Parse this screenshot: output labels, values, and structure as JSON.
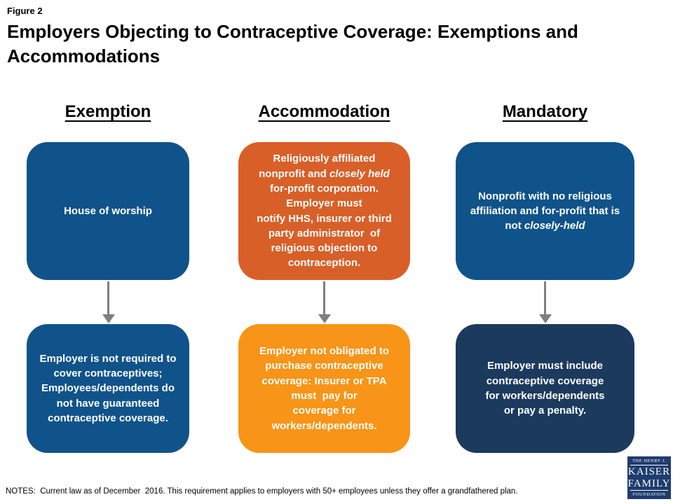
{
  "figure_label": "Figure 2",
  "title": "Employers Objecting to Contraceptive Coverage: Exemptions and\nAccommodations",
  "colors": {
    "blue": "#10538A",
    "orange_red": "#D95F28",
    "orange": "#F89417",
    "navy": "#1C3A5E",
    "arrow_gray": "#7F7F7F",
    "logo_navy": "#1E3C6E"
  },
  "columns": [
    {
      "header": "Exemption",
      "top_box": {
        "color": "#10538A",
        "lines": [
          [
            {
              "t": "House of worship"
            }
          ]
        ]
      },
      "bottom_box": {
        "color": "#10538A",
        "lines": [
          [
            {
              "t": "Employer is not required to"
            }
          ],
          [
            {
              "t": "cover contraceptives;"
            }
          ],
          [
            {
              "t": "Employees/dependents do"
            }
          ],
          [
            {
              "t": "not have guaranteed"
            }
          ],
          [
            {
              "t": "contraceptive coverage."
            }
          ]
        ]
      }
    },
    {
      "header": "Accommodation",
      "top_box": {
        "color": "#D95F28",
        "lines": [
          [
            {
              "t": "Religiously affiliated"
            }
          ],
          [
            {
              "t": "nonprofit and "
            },
            {
              "t": "closely held",
              "i": true
            }
          ],
          [
            {
              "t": "for-profit corporation."
            }
          ],
          [
            {
              "t": "Employer must"
            }
          ],
          [
            {
              "t": "notify HHS, insurer or third"
            }
          ],
          [
            {
              "t": "party administrator  of"
            }
          ],
          [
            {
              "t": "religious objection to"
            }
          ],
          [
            {
              "t": "contraception."
            }
          ]
        ]
      },
      "bottom_box": {
        "color": "#F89417",
        "lines": [
          [
            {
              "t": "Employer not obligated to"
            }
          ],
          [
            {
              "t": "purchase contraceptive"
            }
          ],
          [
            {
              "t": "coverage: Insurer or TPA"
            }
          ],
          [
            {
              "t": "must  pay for"
            }
          ],
          [
            {
              "t": "coverage for"
            }
          ],
          [
            {
              "t": "workers/dependents."
            }
          ]
        ]
      }
    },
    {
      "header": "Mandatory",
      "top_box": {
        "color": "#10538A",
        "lines": [
          [
            {
              "t": "Nonprofit with no religious"
            }
          ],
          [
            {
              "t": "affiliation and for-profit that is"
            }
          ],
          [
            {
              "t": "not "
            },
            {
              "t": "closely-held",
              "i": true
            }
          ]
        ]
      },
      "bottom_box": {
        "color": "#1C3A5E",
        "lines": [
          [
            {
              "t": "Employer must include"
            }
          ],
          [
            {
              "t": "contraceptive coverage"
            }
          ],
          [
            {
              "t": "for workers/dependents"
            }
          ],
          [
            {
              "t": "or pay a penalty."
            }
          ]
        ]
      }
    }
  ],
  "notes": "NOTES:  Current law as of December  2016. This requirement applies to employers with 50+ employees unless they offer a grandfathered plan.",
  "logo": {
    "line1": "THE HENRY J.",
    "line2": "KAISER",
    "line3": "FAMILY",
    "line4": "FOUNDATION"
  }
}
